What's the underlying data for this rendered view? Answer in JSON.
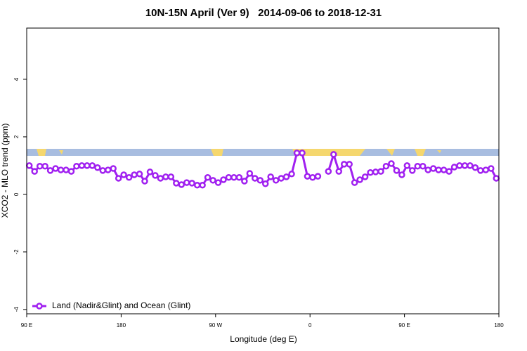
{
  "chart_data": {
    "type": "line",
    "title": "10N-15N April (Ver 9)   2014-09-06 to 2018-12-31",
    "xlabel": "Longitude (deg E)",
    "ylabel": "XCO2 - MLO trend (ppm)",
    "xlim": [
      90,
      540
    ],
    "xticks": [
      {
        "value": 90,
        "label": "90 E"
      },
      180,
      {
        "value": 270,
        "label": "90 W"
      },
      {
        "value": 360,
        "label": "0"
      },
      {
        "value": 450,
        "label": "90 E"
      },
      {
        "value": 540,
        "label": "180"
      }
    ],
    "ylim": [
      -4.15,
      5.78
    ],
    "yticks": [
      -4,
      -2,
      0,
      2,
      4
    ],
    "grid": false,
    "legend": "bottom-left",
    "x": [
      92.5,
      97.5,
      102.5,
      107.5,
      112.5,
      117.5,
      122.5,
      127.5,
      132.5,
      137.5,
      142.5,
      147.5,
      152.5,
      157.5,
      162.5,
      167.5,
      172.5,
      177.5,
      182.5,
      187.5,
      192.5,
      197.5,
      202.5,
      207.5,
      212.5,
      217.5,
      222.5,
      227.5,
      232.5,
      237.5,
      242.5,
      247.5,
      252.5,
      257.5,
      262.5,
      267.5,
      272.5,
      277.5,
      282.5,
      287.5,
      292.5,
      297.5,
      302.5,
      307.5,
      312.5,
      317.5,
      322.5,
      327.5,
      332.5,
      337.5,
      342.5,
      347.5,
      352.5,
      357.5,
      362.5,
      367.5,
      372.5,
      377.5,
      382.5,
      387.5,
      392.5,
      397.5,
      402.5,
      407.5,
      412.5,
      417.5,
      422.5,
      427.5,
      432.5,
      437.5,
      442.5,
      447.5,
      452.5,
      457.5,
      462.5,
      467.5,
      472.5,
      477.5,
      482.5,
      487.5,
      492.5,
      497.5,
      502.5,
      507.5,
      512.5,
      517.5,
      522.5,
      527.5,
      532.5,
      537.5
    ],
    "series": [
      {
        "name": "Land (Nadir&Glint) and Ocean (Glint)",
        "color": "#a020f0",
        "values": [
          1.0,
          0.8,
          0.98,
          0.98,
          0.83,
          0.9,
          0.85,
          0.85,
          0.8,
          0.98,
          1.0,
          1.0,
          1.0,
          0.93,
          0.83,
          0.85,
          0.9,
          0.56,
          0.68,
          0.59,
          0.68,
          0.71,
          0.46,
          0.78,
          0.66,
          0.56,
          0.61,
          0.61,
          0.39,
          0.34,
          0.41,
          0.39,
          0.32,
          0.32,
          0.59,
          0.49,
          0.41,
          0.51,
          0.59,
          0.59,
          0.59,
          0.46,
          0.73,
          0.56,
          0.49,
          0.37,
          0.61,
          0.49,
          0.56,
          0.61,
          0.71,
          1.44,
          1.44,
          0.63,
          0.59,
          0.63,
          null,
          0.8,
          1.39,
          0.8,
          1.05,
          1.05,
          0.41,
          0.51,
          0.61,
          0.76,
          0.78,
          0.8,
          0.98,
          1.07,
          0.83,
          0.68,
          1.0,
          0.83,
          0.98,
          0.98,
          0.85,
          0.9,
          0.85,
          0.85,
          0.8,
          0.95,
          1.0,
          1.0,
          1.0,
          0.93,
          0.83,
          0.85,
          0.9,
          0.56
        ]
      }
    ]
  }
}
